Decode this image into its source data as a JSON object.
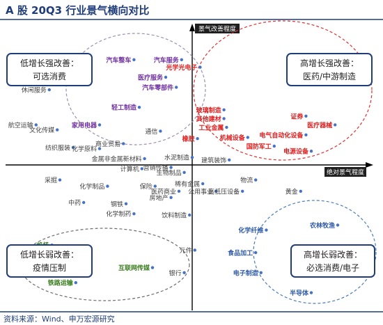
{
  "page": {
    "title": "A 股 20Q3 行业景气横向对比",
    "source": "资料来源：Wind、申万宏源研究"
  },
  "colors": {
    "title_blue": "#1f3d7a",
    "red_text": "#e02020",
    "purple_text": "#7030a0",
    "green_text": "#3a7d1f",
    "blue_text": "#2e5aa8",
    "gray_text": "#404040",
    "dot_blue": "#4472c4",
    "red_circle": "#e03030",
    "purple_circle": "#9b8fb0",
    "green_circle": "#6c6c6c",
    "blue_circle": "#4a7ab8",
    "quad_box": "#1f3d7a"
  },
  "chart_data": {
    "type": "scatter",
    "title": "A 股 20Q3 行业景气横向对比",
    "xlabel": "绝对景气程度",
    "ylabel": "景气改善程度",
    "quadrants": [
      {
        "key": "tl",
        "line1": "低增长强改善：",
        "line2": "可选消费"
      },
      {
        "key": "tr",
        "line1": "高增长强改善：",
        "line2": "医药/中游制造"
      },
      {
        "key": "bl",
        "line1": "低增长弱改善：",
        "line2": "疫情压制"
      },
      {
        "key": "br",
        "line1": "高增长弱改善：",
        "line2": "必选消费/电子"
      }
    ],
    "points": [
      {
        "label": "汽车整车",
        "x": -2.2,
        "y": 4.2,
        "group": "purple"
      },
      {
        "label": "汽车服务",
        "x": -0.4,
        "y": 4.2,
        "group": "purple"
      },
      {
        "label": "医疗服务",
        "x": -1.0,
        "y": 3.5,
        "group": "purple"
      },
      {
        "label": "汽车零部件",
        "x": -0.6,
        "y": 3.1,
        "group": "purple"
      },
      {
        "label": "轻工制造",
        "x": -2.0,
        "y": 2.3,
        "group": "purple"
      },
      {
        "label": "家用电器",
        "x": -3.5,
        "y": 1.6,
        "group": "purple"
      },
      {
        "label": "光学光电子",
        "x": 0.3,
        "y": 3.9,
        "group": "red"
      },
      {
        "label": "玻璃制造",
        "x": 1.2,
        "y": 2.2,
        "group": "red"
      },
      {
        "label": "其他建材",
        "x": 1.2,
        "y": 1.85,
        "group": "red"
      },
      {
        "label": "工业金属",
        "x": 1.3,
        "y": 1.5,
        "group": "red"
      },
      {
        "label": "橡胶",
        "x": 0.2,
        "y": 1.05,
        "group": "red"
      },
      {
        "label": "机械设备",
        "x": 2.1,
        "y": 1.1,
        "group": "red"
      },
      {
        "label": "国防军工",
        "x": 3.1,
        "y": 0.75,
        "group": "red"
      },
      {
        "label": "证券",
        "x": 4.3,
        "y": 1.95,
        "group": "red"
      },
      {
        "label": "医疗器械",
        "x": 5.4,
        "y": 1.6,
        "group": "red"
      },
      {
        "label": "电气自动化设备",
        "x": 4.3,
        "y": 1.2,
        "group": "red"
      },
      {
        "label": "电源设备",
        "x": 4.5,
        "y": 0.55,
        "group": "red"
      },
      {
        "label": "休闲服务",
        "x": -5.4,
        "y": 3.0,
        "group": "gray"
      },
      {
        "label": "航空运输",
        "x": -5.9,
        "y": 1.6,
        "group": "gray"
      },
      {
        "label": "文化传媒",
        "x": -5.1,
        "y": 1.4,
        "group": "gray"
      },
      {
        "label": "纺织服装",
        "x": -4.5,
        "y": 0.7,
        "group": "gray"
      },
      {
        "label": "化学原料",
        "x": -3.5,
        "y": 0.65,
        "group": "gray"
      },
      {
        "label": "商业贸易",
        "x": -2.6,
        "y": 0.85,
        "group": "gray"
      },
      {
        "label": "通信",
        "x": -1.2,
        "y": 1.35,
        "group": "gray"
      },
      {
        "label": "金属非金属新材料",
        "x": -1.8,
        "y": 0.25,
        "group": "gray"
      },
      {
        "label": "计算机",
        "x": -1.9,
        "y": -0.15,
        "group": "gray"
      },
      {
        "label": "营销传播",
        "x": -0.8,
        "y": -0.1,
        "group": "gray"
      },
      {
        "label": "水泥制造",
        "x": 0.0,
        "y": 0.3,
        "group": "gray"
      },
      {
        "label": "建筑装饰",
        "x": 1.4,
        "y": 0.2,
        "group": "gray"
      },
      {
        "label": "生物制品",
        "x": -0.3,
        "y": -0.3,
        "group": "gray"
      },
      {
        "label": "采掘",
        "x": -5.0,
        "y": -0.6,
        "group": "gray"
      },
      {
        "label": "化学制品",
        "x": -3.2,
        "y": -0.85,
        "group": "gray"
      },
      {
        "label": "保险",
        "x": -1.4,
        "y": -0.85,
        "group": "gray"
      },
      {
        "label": "稀有金属",
        "x": 0.4,
        "y": -0.75,
        "group": "gray"
      },
      {
        "label": "医药商业",
        "x": -0.5,
        "y": -1.05,
        "group": "gray"
      },
      {
        "label": "公用事业",
        "x": 0.9,
        "y": -1.05,
        "group": "gray"
      },
      {
        "label": "高低压设备",
        "x": 1.9,
        "y": -1.05,
        "group": "gray"
      },
      {
        "label": "物流",
        "x": 2.4,
        "y": -0.6,
        "group": "gray"
      },
      {
        "label": "黄金",
        "x": 4.1,
        "y": -1.05,
        "group": "gray"
      },
      {
        "label": "房地产",
        "x": -0.8,
        "y": -1.3,
        "group": "gray"
      },
      {
        "label": "中药",
        "x": -4.1,
        "y": -1.5,
        "group": "gray"
      },
      {
        "label": "钢铁",
        "x": -2.5,
        "y": -1.55,
        "group": "gray"
      },
      {
        "label": "化学制药",
        "x": -2.2,
        "y": -1.95,
        "group": "gray"
      },
      {
        "label": "饮料制造",
        "x": -0.1,
        "y": -2.0,
        "group": "gray"
      },
      {
        "label": "元件",
        "x": 0.1,
        "y": -3.4,
        "group": "gray"
      },
      {
        "label": "银行",
        "x": -0.3,
        "y": -4.3,
        "group": "gray"
      },
      {
        "label": "机场",
        "x": -5.3,
        "y": -3.2,
        "group": "green"
      },
      {
        "label": "铁路运输",
        "x": -4.4,
        "y": -4.7,
        "group": "green"
      },
      {
        "label": "互联网传媒",
        "x": -1.5,
        "y": -4.1,
        "group": "green"
      },
      {
        "label": "农林牧渔",
        "x": 5.5,
        "y": -2.4,
        "group": "blue"
      },
      {
        "label": "化学纤维",
        "x": 2.8,
        "y": -2.6,
        "group": "blue"
      },
      {
        "label": "食品加工",
        "x": 2.4,
        "y": -3.5,
        "group": "blue"
      },
      {
        "label": "电子制造",
        "x": 2.6,
        "y": -4.3,
        "group": "blue"
      },
      {
        "label": "半导体",
        "x": 4.5,
        "y": -5.1,
        "group": "blue"
      }
    ]
  }
}
